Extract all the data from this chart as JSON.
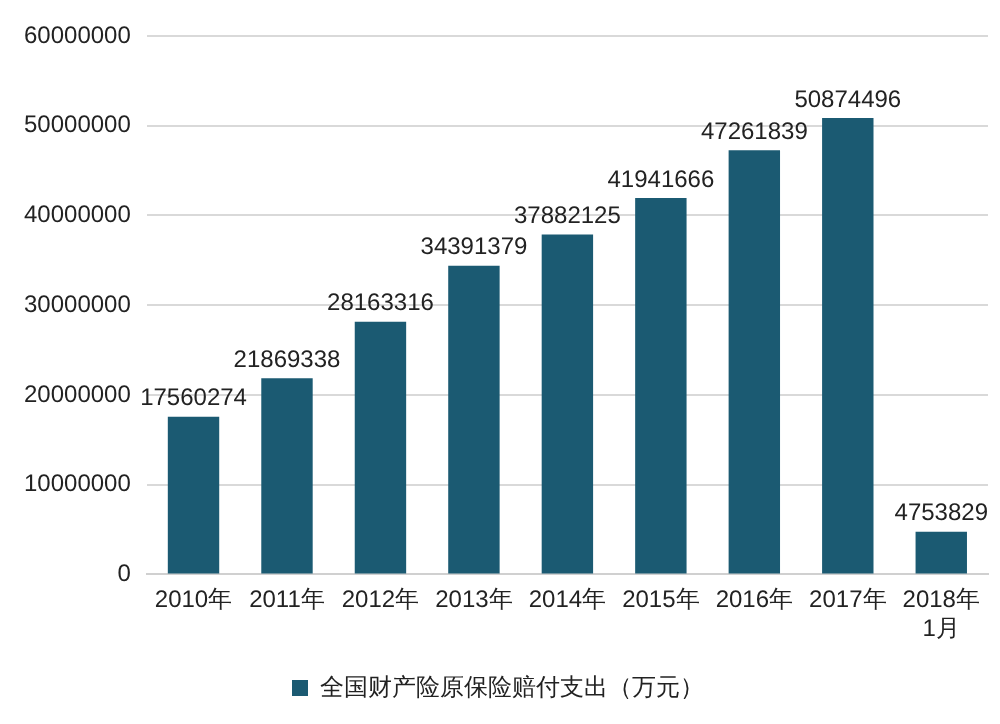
{
  "chart_data": {
    "type": "bar",
    "categories": [
      "2010年",
      "2011年",
      "2012年",
      "2013年",
      "2014年",
      "2015年",
      "2016年",
      "2017年",
      "2018年1月"
    ],
    "series": [
      {
        "name": "全国财产险原保险赔付支出（万元）",
        "color": "#1b5a72",
        "values": [
          17560274,
          21869338,
          28163316,
          34391379,
          37882125,
          41941666,
          47261839,
          50874496,
          4753829
        ]
      }
    ],
    "ylim": [
      0,
      60000000
    ],
    "yticks": [
      0,
      10000000,
      20000000,
      30000000,
      40000000,
      50000000,
      60000000
    ],
    "grid": "y",
    "legend": "bottom",
    "data_labels": true
  }
}
